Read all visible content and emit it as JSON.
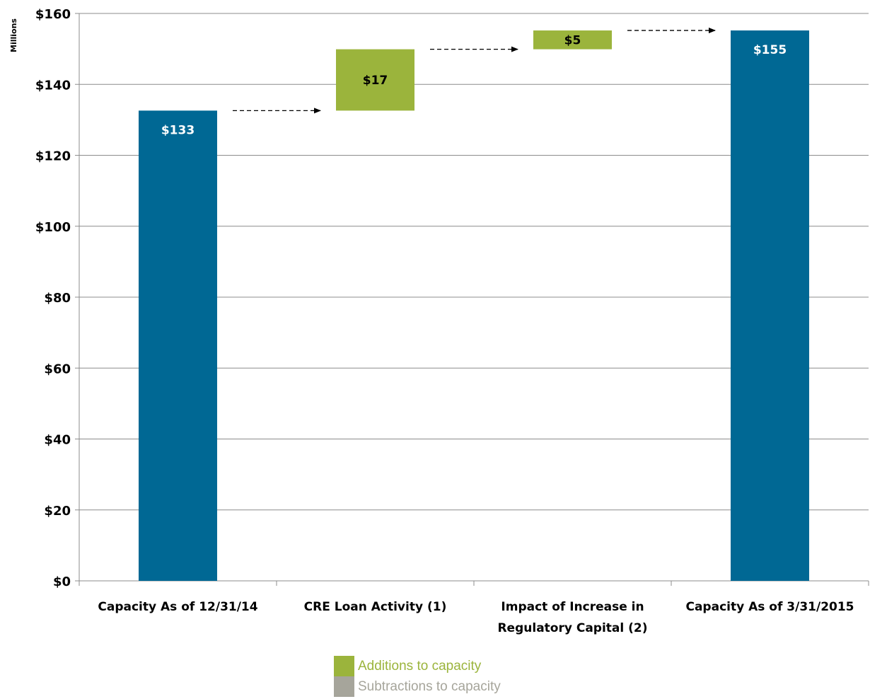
{
  "chart_data": {
    "type": "bar",
    "subtype": "waterfall",
    "ylabel": "Millions",
    "ylim": [
      0,
      160
    ],
    "yticks": [
      0,
      20,
      40,
      60,
      80,
      100,
      120,
      140,
      160
    ],
    "ytick_labels": [
      "$0",
      "$20",
      "$40",
      "$60",
      "$80",
      "$100",
      "$120",
      "$140",
      "$160"
    ],
    "grid": true,
    "categories": [
      [
        "Capacity As of 12/31/14"
      ],
      [
        "CRE Loan Activity (1)"
      ],
      [
        "Impact of Increase in",
        "Regulatory Capital (2)"
      ],
      [
        "Capacity As of 3/31/2015"
      ]
    ],
    "bars": [
      {
        "kind": "total",
        "base": 0,
        "value": 132.6,
        "label": "$133",
        "color": "#006894",
        "label_color": "#ffffff"
      },
      {
        "kind": "addition",
        "base": 132.6,
        "value": 17.3,
        "label": "$17",
        "color": "#9BB43C",
        "label_color": "#000000"
      },
      {
        "kind": "addition",
        "base": 149.9,
        "value": 5.3,
        "label": "$5",
        "color": "#9BB43C",
        "label_color": "#000000"
      },
      {
        "kind": "total",
        "base": 0,
        "value": 155.2,
        "label": "$155",
        "color": "#006894",
        "label_color": "#ffffff"
      }
    ],
    "legend": {
      "placement": "bottom-center",
      "items": [
        {
          "label": "Additions to capacity",
          "color": "#9BB43C",
          "text_color": "#9BB43C"
        },
        {
          "label": "Subtractions to capacity",
          "color": "#A6A59B",
          "text_color": "#A6A59B"
        }
      ]
    }
  }
}
